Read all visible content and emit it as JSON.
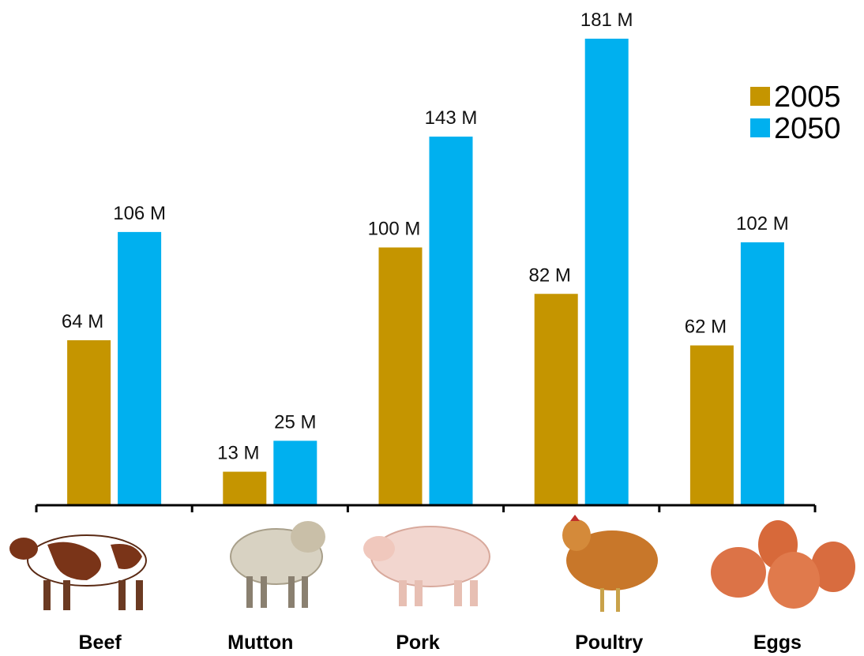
{
  "chart_data": {
    "type": "bar",
    "categories": [
      "Beef",
      "Mutton",
      "Pork",
      "Poultry",
      "Eggs"
    ],
    "series": [
      {
        "name": "2005",
        "color": "#c59500",
        "values": [
          64,
          13,
          100,
          82,
          62
        ],
        "value_labels": [
          "64 M",
          "13 M",
          "100 M",
          "82 M",
          "62 M"
        ]
      },
      {
        "name": "2050",
        "color": "#00b0ef",
        "values": [
          106,
          25,
          143,
          181,
          102
        ],
        "value_labels": [
          "106 M",
          "25 M",
          "143 M",
          "181 M",
          "102 M"
        ]
      }
    ],
    "legend": "top-right"
  }
}
